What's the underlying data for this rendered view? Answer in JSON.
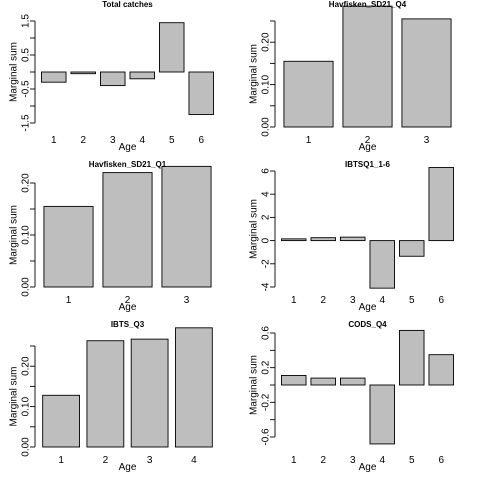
{
  "chart_data": [
    {
      "type": "bar",
      "title": "Total catches",
      "xlabel": "Age",
      "ylabel": "Marginal sum",
      "categories": [
        "1",
        "2",
        "3",
        "4",
        "5",
        "6"
      ],
      "values": [
        -0.3,
        -0.05,
        -0.4,
        -0.2,
        1.45,
        -1.25
      ],
      "ylim": [
        -1.5,
        1.5
      ],
      "yticks": [
        "-1.5",
        "-0.5",
        "0.5",
        "1.5"
      ],
      "yticks_minor": [
        -1.0,
        0.0,
        1.0
      ]
    },
    {
      "type": "bar",
      "title": "Havfisken_SD21_Q4",
      "xlabel": "Age",
      "ylabel": "Marginal sum",
      "categories": [
        "1",
        "2",
        "3"
      ],
      "values": [
        0.155,
        0.285,
        0.255
      ],
      "ylim": [
        0.0,
        0.25
      ],
      "yticks": [
        "0.00",
        "0.10",
        "0.20"
      ],
      "yticks_minor": [
        0.05,
        0.15,
        0.25
      ]
    },
    {
      "type": "bar",
      "title": "Havfisken_SD21_Q1",
      "xlabel": "Age",
      "ylabel": "Marginal sum",
      "categories": [
        "1",
        "2",
        "3"
      ],
      "values": [
        0.155,
        0.22,
        0.232
      ],
      "ylim": [
        0.0,
        0.2
      ],
      "yticks": [
        "0.00",
        "0.10",
        "0.20"
      ],
      "yticks_minor": [
        0.05,
        0.15
      ]
    },
    {
      "type": "bar",
      "title": "IBTSQ1_1-6",
      "xlabel": "Age",
      "ylabel": "Marginal sum",
      "categories": [
        "1",
        "2",
        "3",
        "4",
        "5",
        "6"
      ],
      "values": [
        0.15,
        0.25,
        0.3,
        -4.1,
        -1.35,
        6.3
      ],
      "ylim": [
        -4,
        6
      ],
      "yticks": [
        "-4",
        "-2",
        "0",
        "2",
        "4",
        "6"
      ],
      "yticks_minor": []
    },
    {
      "type": "bar",
      "title": "IBTS_Q3",
      "xlabel": "Age",
      "ylabel": "Marginal sum",
      "categories": [
        "1",
        "2",
        "3",
        "4"
      ],
      "values": [
        0.128,
        0.263,
        0.267,
        0.295
      ],
      "ylim": [
        0.0,
        0.25
      ],
      "yticks": [
        "0.00",
        "0.10",
        "0.20"
      ],
      "yticks_minor": [
        0.05,
        0.15,
        0.25
      ]
    },
    {
      "type": "bar",
      "title": "CODS_Q4",
      "xlabel": "Age",
      "ylabel": "Marginal sum",
      "categories": [
        "1",
        "2",
        "3",
        "4",
        "5",
        "6"
      ],
      "values": [
        0.11,
        0.08,
        0.08,
        -0.68,
        0.63,
        0.35
      ],
      "ylim": [
        -0.6,
        0.6
      ],
      "yticks": [
        "-0.6",
        "-0.2",
        "0.2",
        "0.6"
      ],
      "yticks_minor": [
        -0.4,
        0.0,
        0.4
      ]
    }
  ]
}
